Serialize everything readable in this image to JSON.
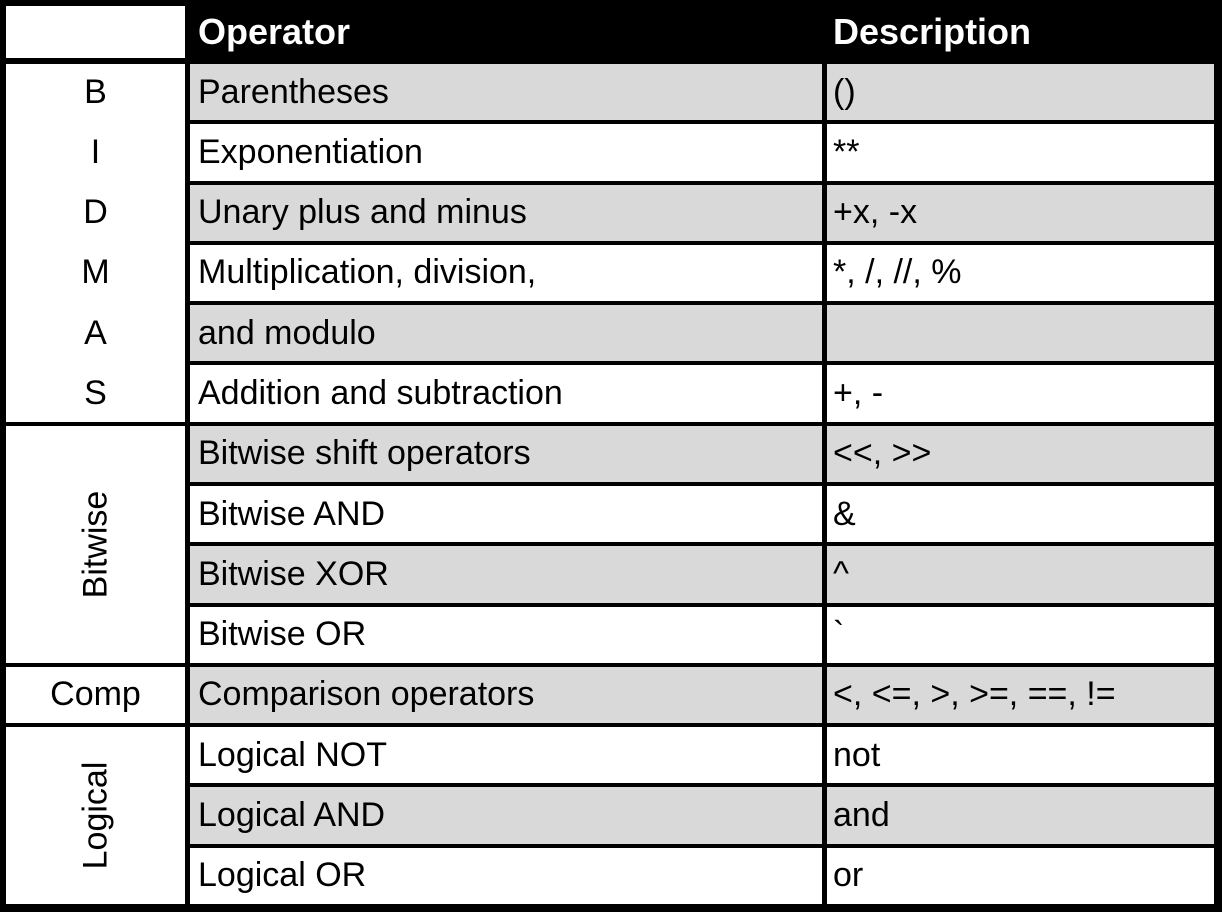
{
  "header": {
    "operator": "Operator",
    "description": "Description"
  },
  "rows": [
    {
      "operator": "Parentheses",
      "description": "()"
    },
    {
      "operator": "Exponentiation",
      "description": "**"
    },
    {
      "operator": "Unary plus and minus",
      "description": "+x, -x"
    },
    {
      "operator": "Multiplication, division,",
      "description": "*, /, //, %"
    },
    {
      "operator": "and modulo",
      "description": ""
    },
    {
      "operator": "Addition and subtraction",
      "description": "+, -"
    },
    {
      "operator": "Bitwise shift operators",
      "description": "<<, >>"
    },
    {
      "operator": "Bitwise AND",
      "description": "&"
    },
    {
      "operator": "Bitwise XOR",
      "description": "^"
    },
    {
      "operator": "Bitwise OR",
      "description": "`"
    },
    {
      "operator": "Comparison operators",
      "description": "<, <=, >, >=, ==, !="
    },
    {
      "operator": "Logical NOT",
      "description": "not"
    },
    {
      "operator": "Logical AND",
      "description": "and"
    },
    {
      "operator": "Logical OR",
      "description": "or"
    }
  ],
  "groups": [
    {
      "label": "BIDMAS",
      "letters": [
        "B",
        "I",
        "D",
        "M",
        "A",
        "S"
      ],
      "start": 0,
      "span": 6,
      "style": "letters"
    },
    {
      "label": "Bitwise",
      "start": 6,
      "span": 4,
      "style": "rotated"
    },
    {
      "label": "Comp",
      "start": 10,
      "span": 1,
      "style": "horizontal"
    },
    {
      "label": "Logical",
      "start": 11,
      "span": 3,
      "style": "rotated"
    }
  ],
  "colors": {
    "header_bg": "#000000",
    "stripe": "#d9d9d9",
    "row": "#ffffff",
    "border": "#000000"
  }
}
